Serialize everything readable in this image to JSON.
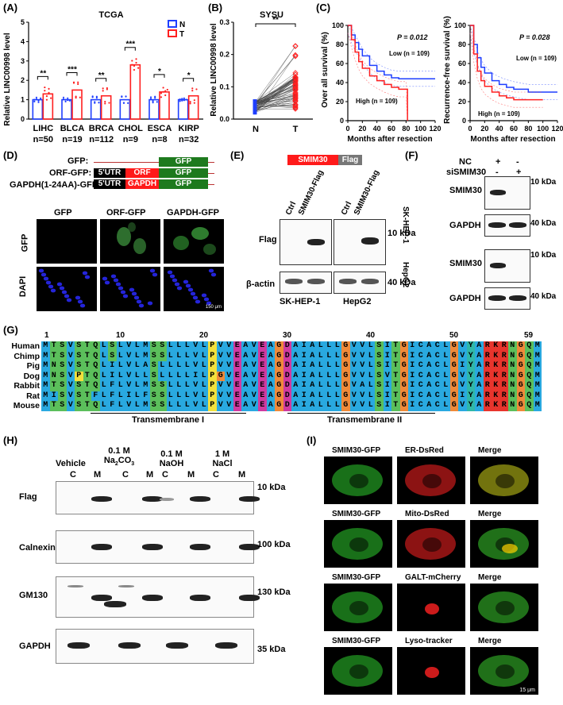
{
  "panels": {
    "A": "(A)",
    "B": "(B)",
    "C": "(C)",
    "D": "(D)",
    "E": "(E)",
    "F": "(F)",
    "G": "(G)",
    "H": "(H)",
    "I": "(I)"
  },
  "chart_data": [
    {
      "type": "bar",
      "title": "TCGA",
      "ylabel": "Relative LINC00998 level",
      "ylim": [
        0,
        5
      ],
      "yticks": [
        0,
        1,
        2,
        3,
        4,
        5
      ],
      "legend": [
        "N",
        "T"
      ],
      "legend_position": "top-right",
      "categories": [
        "LIHC",
        "BLCA",
        "BRCA",
        "CHOL",
        "ESCA",
        "KIRP"
      ],
      "n_labels": [
        "n=50",
        "n=19",
        "n=112",
        "n=9",
        "n=8",
        "n=32"
      ],
      "series": [
        {
          "name": "N",
          "values": [
            1.0,
            1.0,
            1.0,
            1.0,
            1.0,
            1.0
          ]
        },
        {
          "name": "T",
          "values": [
            1.3,
            1.5,
            1.2,
            2.8,
            1.4,
            1.2
          ]
        }
      ],
      "significance": [
        "**",
        "***",
        "**",
        "***",
        "*",
        "*"
      ]
    },
    {
      "type": "scatter",
      "title": "SYSU",
      "ylabel": "Relative LINC00998 level",
      "ylim": [
        0,
        0.3
      ],
      "yticks": [
        0.0,
        0.1,
        0.2,
        0.3
      ],
      "categories": [
        "N",
        "T"
      ],
      "significance": "**"
    },
    {
      "type": "line",
      "xlabel": "Months after resection",
      "ylabel": "Over all survival (%)",
      "xticks": [
        0,
        20,
        40,
        60,
        80,
        100,
        120
      ],
      "yticks": [
        0,
        20,
        40,
        60,
        80,
        100
      ],
      "pvalue": "P = 0.012",
      "low_label": "Low (n = 109)",
      "high_label": "High (n = 109)",
      "series": [
        {
          "name": "Low (n = 109)",
          "x": [
            0,
            5,
            10,
            15,
            20,
            30,
            40,
            50,
            60,
            70,
            80,
            100,
            120
          ],
          "y": [
            100,
            90,
            82,
            75,
            68,
            58,
            52,
            48,
            45,
            44,
            44,
            44,
            44
          ]
        },
        {
          "name": "High (n = 109)",
          "x": [
            0,
            5,
            10,
            15,
            20,
            30,
            40,
            50,
            60,
            70,
            80,
            82
          ],
          "y": [
            100,
            85,
            72,
            62,
            55,
            47,
            42,
            38,
            35,
            33,
            33,
            0
          ]
        }
      ]
    },
    {
      "type": "line",
      "xlabel": "Months after resection",
      "ylabel": "Recurrence-free survival (%)",
      "xticks": [
        0,
        20,
        40,
        60,
        80,
        100,
        120
      ],
      "yticks": [
        0,
        20,
        40,
        60,
        80,
        100
      ],
      "pvalue": "P = 0.028",
      "low_label": "Low (n = 109)",
      "high_label": "High (n = 109)",
      "series": [
        {
          "name": "Low (n = 109)",
          "x": [
            0,
            5,
            10,
            15,
            20,
            30,
            40,
            50,
            60,
            80,
            100,
            120
          ],
          "y": [
            100,
            80,
            66,
            56,
            50,
            42,
            38,
            35,
            33,
            30,
            30,
            30
          ]
        },
        {
          "name": "High (n = 109)",
          "x": [
            0,
            5,
            10,
            15,
            20,
            30,
            40,
            50,
            60,
            80,
            100
          ],
          "y": [
            100,
            70,
            52,
            42,
            36,
            30,
            26,
            24,
            22,
            22,
            22
          ]
        }
      ]
    }
  ],
  "D": {
    "constructs": [
      "GFP:",
      "ORF-GFP:",
      "GAPDH(1-24AA)-GFP:"
    ],
    "gfp": "GFP",
    "utr": "5'UTR",
    "orf": "ORF",
    "gapdh": "GAPDH",
    "col_labels": [
      "GFP",
      "ORF-GFP",
      "GAPDH-GFP"
    ],
    "row_labels": [
      "GFP",
      "DAPI"
    ],
    "scale": "150 μm"
  },
  "E": {
    "smim30": "SMIM30",
    "flag": "Flag",
    "lanes": [
      "Ctrl",
      "SMIM30-Flag",
      "Ctrl",
      "SMIM30-Flag"
    ],
    "rows": [
      "Flag",
      "β-actin"
    ],
    "kda": [
      "10 kDa",
      "40 kDa"
    ],
    "cells": [
      "SK-HEP-1",
      "HepG2"
    ]
  },
  "F": {
    "nc": "NC",
    "si": "siSMIM30",
    "signs": [
      "+",
      "-",
      "-",
      "+"
    ],
    "rows": [
      "SMIM30",
      "GAPDH",
      "SMIM30",
      "GAPDH"
    ],
    "kda": [
      "10 kDa",
      "40 kDa",
      "10 kDa",
      "40 kDa"
    ],
    "cells": [
      "SK-HEP-1",
      "HepG2"
    ]
  },
  "G": {
    "positions": [
      "1",
      "10",
      "20",
      "30",
      "40",
      "50",
      "59"
    ],
    "species": [
      "Human",
      "Chimp",
      "Pig",
      "Dog",
      "Rabbit",
      "Rat",
      "Mouse"
    ],
    "seqs": [
      "MTSVSTQLSLVLMSSLLLVLPVVEAVEAGDAIALLLGVVLSITGICACLGVYARKRNGQM",
      "MTSVSTQLSLVLMSSLLLVLPVVEAVEAGDAIALLLGVVLSITGICACLGVYARKRNGQM",
      "MNSVSTQLILVLASLLLLVLPVVEAVEAGDAIALLLGVVLSITGICACLGIYARKRNGQM",
      "MNSVPTQLILVLLSLLLLILPGVEAVEAGDAIALLLGVVLSVTGICACLGVYARKRNGQM",
      "MTSVSTQLFLVLMSSLLLVLPVVEAVEAGDAIALLLGVALSITGICACLGVYARKRNGQM",
      "MISVSTFLFLILFSSLLLVLPVVEAVEAGDAIALLLGVVLSITGICACLGIYARKRNGQM",
      "MTSVSTQLFLVLMSSLLLVLPVVEAVEAGDAIALLLGVVLSITGICACLGVYARKRNGQM"
    ],
    "tm1": "Transmembrane I",
    "tm2": "Transmembrane II"
  },
  "H": {
    "conditions": [
      "Vehicle",
      "0.1 M Na2CO3",
      "0.1 M NaOH",
      "1 M NaCl"
    ],
    "fractions": [
      "C",
      "M",
      "C",
      "M",
      "C",
      "M",
      "C",
      "M"
    ],
    "rows": [
      "Flag",
      "Calnexin",
      "GM130",
      "GAPDH"
    ],
    "kda": [
      "10 kDa",
      "100 kDa",
      "130 kDa",
      "35 kDa"
    ]
  },
  "I": {
    "headers": [
      [
        "SMIM30-GFP",
        "ER-DsRed",
        "Merge"
      ],
      [
        "SMIM30-GFP",
        "Mito-DsRed",
        "Merge"
      ],
      [
        "SMIM30-GFP",
        "GALT-mCherry",
        "Merge"
      ],
      [
        "SMIM30-GFP",
        "Lyso-tracker",
        "Merge"
      ]
    ],
    "scale": "15 μm"
  },
  "colors": {
    "normal": "#1f3fff",
    "tumor": "#ff2020",
    "gfp": "#1e7a1e",
    "orf": "#ff1a1a",
    "utr": "#000000",
    "flag": "#777777"
  }
}
